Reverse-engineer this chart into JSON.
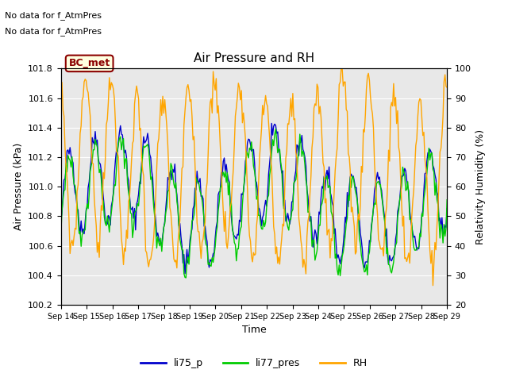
{
  "title": "Air Pressure and RH",
  "xlabel": "Time",
  "ylabel_left": "Air Pressure (kPa)",
  "ylabel_right": "Relativity Humidity (%)",
  "ylim_left": [
    100.2,
    101.8
  ],
  "ylim_right": [
    20,
    100
  ],
  "yticks_left": [
    100.2,
    100.4,
    100.6,
    100.8,
    101.0,
    101.2,
    101.4,
    101.6,
    101.8
  ],
  "yticks_right": [
    20,
    30,
    40,
    50,
    60,
    70,
    80,
    90,
    100
  ],
  "xtick_labels": [
    "Sep 14",
    "Sep 15",
    "Sep 16",
    "Sep 17",
    "Sep 18",
    "Sep 19",
    "Sep 20",
    "Sep 21",
    "Sep 22",
    "Sep 23",
    "Sep 24",
    "Sep 25",
    "Sep 26",
    "Sep 27",
    "Sep 28",
    "Sep 29"
  ],
  "color_li75": "#0000cc",
  "color_li77": "#00cc00",
  "color_rh": "#ffa500",
  "legend_labels": [
    "li75_p",
    "li77_pres",
    "RH"
  ],
  "text_no_data_1": "No data for f_AtmPres",
  "text_no_data_2": "No data for f_AtmPres",
  "bc_met_label": "BC_met",
  "plot_bg_color": "#e8e8e8"
}
